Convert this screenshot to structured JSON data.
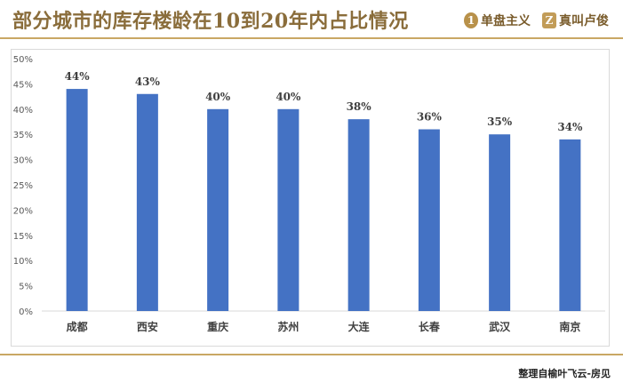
{
  "header": {
    "title": "部分城市的库存楼龄在10到20年内占比情况",
    "brands": [
      {
        "icon_text": "1",
        "label": "单盘主义"
      },
      {
        "icon_text": "Z",
        "label": "真叫卢俊"
      }
    ]
  },
  "footer": {
    "credit": "整理自榆叶飞云-房见"
  },
  "colors": {
    "bar": "#4472c4",
    "accent": "#c9a764",
    "title": "#8a6d3b"
  },
  "chart_data": {
    "type": "bar",
    "title": "",
    "xlabel": "",
    "ylabel": "",
    "categories": [
      "成都",
      "西安",
      "重庆",
      "苏州",
      "大连",
      "长春",
      "武汉",
      "南京"
    ],
    "values": [
      44,
      43,
      40,
      40,
      38,
      36,
      35,
      34
    ],
    "value_labels": [
      "44%",
      "43%",
      "40%",
      "40%",
      "38%",
      "36%",
      "35%",
      "34%"
    ],
    "yticks": [
      "0%",
      "5%",
      "10%",
      "15%",
      "20%",
      "25%",
      "30%",
      "35%",
      "40%",
      "45%",
      "50%"
    ],
    "ylim": [
      0,
      50
    ],
    "grid": false,
    "legend": "none"
  }
}
